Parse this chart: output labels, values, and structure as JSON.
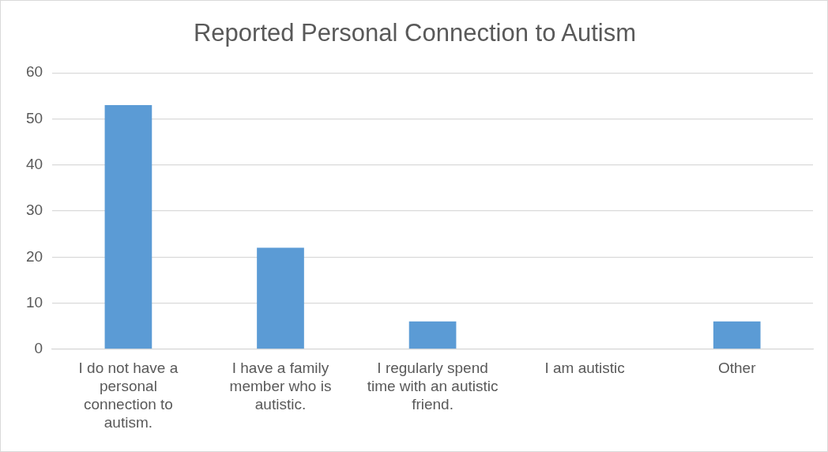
{
  "chart_data": {
    "type": "bar",
    "title": "Reported Personal Connection to Autism",
    "categories": [
      "I do not have a personal connection to autism.",
      "I have a family member who is autistic.",
      "I regularly spend time with an autistic friend.",
      "I am autistic",
      "Other"
    ],
    "values": [
      53,
      22,
      6,
      0,
      6
    ],
    "color": "#5b9bd5",
    "ylim": [
      0,
      60
    ],
    "yticks": [
      0,
      10,
      20,
      30,
      40,
      50,
      60
    ],
    "grid": "y",
    "legend": false
  }
}
